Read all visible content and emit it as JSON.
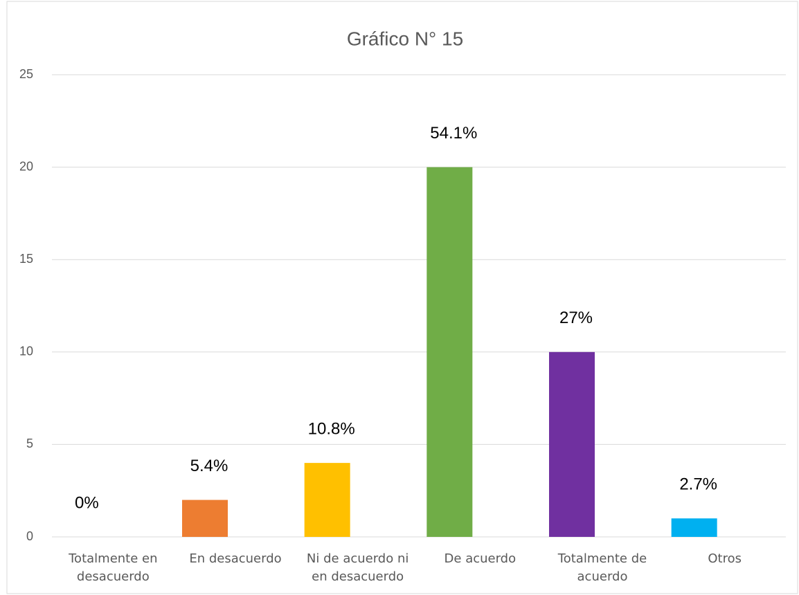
{
  "chart_data": {
    "type": "bar",
    "title": "Gráfico N° 15",
    "categories": [
      "Totalmente en desacuerdo",
      "En desacuerdo",
      "Ni de acuerdo ni en desacuerdo",
      "De acuerdo",
      "Totalmente de acuerdo",
      "Otros"
    ],
    "values": [
      0,
      2,
      4,
      20,
      10,
      1
    ],
    "value_labels": [
      "0%",
      "5.4%",
      "10.8%",
      "54.1%",
      "27%",
      "2.7%"
    ],
    "colors": [
      "#4472c4",
      "#ed7d31",
      "#ffc000",
      "#70ad47",
      "#7030a0",
      "#00b0f0"
    ],
    "ylim": [
      0,
      25
    ],
    "yticks": [
      0,
      5,
      10,
      15,
      20,
      25
    ],
    "grid": true
  }
}
